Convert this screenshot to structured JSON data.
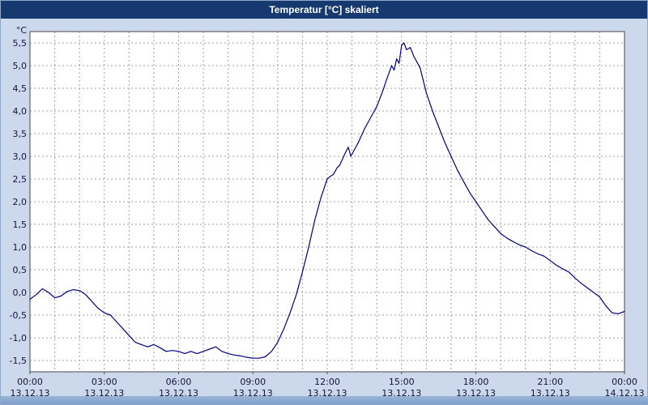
{
  "window": {
    "title": "Temperatur [°C] skaliert"
  },
  "colors": {
    "titlebar": "#16396f",
    "background": "#ccd8ec",
    "line": "#000080",
    "grid": "#9aa0a6",
    "plot_border": "#4a4a4a",
    "text": "#14143c",
    "bottom_strip": "#7da0cc"
  },
  "chart_data": {
    "type": "line",
    "title": "Temperatur [°C] skaliert",
    "xlabel": "",
    "ylabel": "°C",
    "xlim": [
      0,
      24
    ],
    "ylim": [
      -1.75,
      5.75
    ],
    "grid": "dashed; vertical every 1 hour, horizontal every 0.5 °C",
    "legend_position": "none",
    "x_grid_step_hours": 1,
    "y_ticks": {
      "values": [
        5.5,
        5.0,
        4.5,
        4.0,
        3.5,
        3.0,
        2.5,
        2.0,
        1.5,
        1.0,
        0.5,
        0.0,
        -0.5,
        -1.0,
        -1.5
      ],
      "labels": [
        "5,5",
        "5,0",
        "4,5",
        "4,0",
        "3,5",
        "3,0",
        "2,5",
        "2,0",
        "1,5",
        "1,0",
        "0,5",
        "0,0",
        "-0,5",
        "-1,0",
        "-1,5"
      ]
    },
    "x_ticks": {
      "hours": [
        0,
        3,
        6,
        9,
        12,
        15,
        18,
        21,
        24
      ],
      "times": [
        "00:00",
        "03:00",
        "06:00",
        "09:00",
        "12:00",
        "15:00",
        "18:00",
        "21:00",
        "00:00"
      ],
      "dates": [
        "13.12.13",
        "13.12.13",
        "13.12.13",
        "13.12.13",
        "13.12.13",
        "13.12.13",
        "13.12.13",
        "13.12.13",
        "14.12.13"
      ]
    },
    "series": [
      {
        "name": "Temperatur",
        "color": "#000080",
        "x": [
          0,
          0.25,
          0.5,
          0.75,
          1,
          1.25,
          1.5,
          1.75,
          2,
          2.25,
          2.5,
          2.75,
          3,
          3.25,
          3.5,
          3.75,
          4,
          4.25,
          4.5,
          4.75,
          5,
          5.25,
          5.5,
          5.75,
          6,
          6.25,
          6.5,
          6.75,
          7,
          7.25,
          7.5,
          7.75,
          8,
          8.25,
          8.5,
          8.75,
          9,
          9.25,
          9.5,
          9.75,
          10,
          10.25,
          10.5,
          10.75,
          11,
          11.25,
          11.5,
          11.75,
          12,
          12.1,
          12.25,
          12.4,
          12.5,
          12.75,
          12.85,
          12.95,
          13.1,
          13.25,
          13.5,
          13.75,
          14,
          14.25,
          14.4,
          14.5,
          14.6,
          14.7,
          14.8,
          14.9,
          15,
          15.1,
          15.2,
          15.35,
          15.5,
          15.75,
          16,
          16.25,
          16.5,
          16.75,
          17,
          17.25,
          17.5,
          17.75,
          18,
          18.25,
          18.5,
          18.75,
          19,
          19.25,
          19.5,
          19.75,
          20,
          20.25,
          20.5,
          20.75,
          21,
          21.25,
          21.5,
          21.75,
          22,
          22.25,
          22.5,
          22.75,
          23,
          23.25,
          23.5,
          23.75,
          24
        ],
        "y": [
          -0.15,
          -0.05,
          0.08,
          0,
          -0.12,
          -0.08,
          0.02,
          0.06,
          0.04,
          -0.05,
          -0.2,
          -0.35,
          -0.45,
          -0.5,
          -0.65,
          -0.8,
          -0.95,
          -1.1,
          -1.15,
          -1.2,
          -1.15,
          -1.22,
          -1.3,
          -1.28,
          -1.3,
          -1.35,
          -1.3,
          -1.35,
          -1.3,
          -1.25,
          -1.2,
          -1.3,
          -1.35,
          -1.38,
          -1.4,
          -1.43,
          -1.45,
          -1.45,
          -1.42,
          -1.3,
          -1.1,
          -0.8,
          -0.45,
          -0.05,
          0.45,
          1.0,
          1.6,
          2.1,
          2.5,
          2.55,
          2.6,
          2.75,
          2.8,
          3.1,
          3.2,
          3.0,
          3.15,
          3.3,
          3.6,
          3.85,
          4.1,
          4.45,
          4.7,
          4.85,
          5.0,
          4.9,
          5.15,
          5.05,
          5.45,
          5.5,
          5.35,
          5.4,
          5.2,
          4.95,
          4.4,
          4.0,
          3.65,
          3.3,
          3.0,
          2.7,
          2.45,
          2.2,
          2.0,
          1.8,
          1.6,
          1.45,
          1.3,
          1.2,
          1.12,
          1.05,
          1.0,
          0.92,
          0.85,
          0.8,
          0.7,
          0.6,
          0.52,
          0.45,
          0.32,
          0.2,
          0.1,
          0.0,
          -0.1,
          -0.3,
          -0.45,
          -0.47,
          -0.42
        ]
      }
    ]
  }
}
